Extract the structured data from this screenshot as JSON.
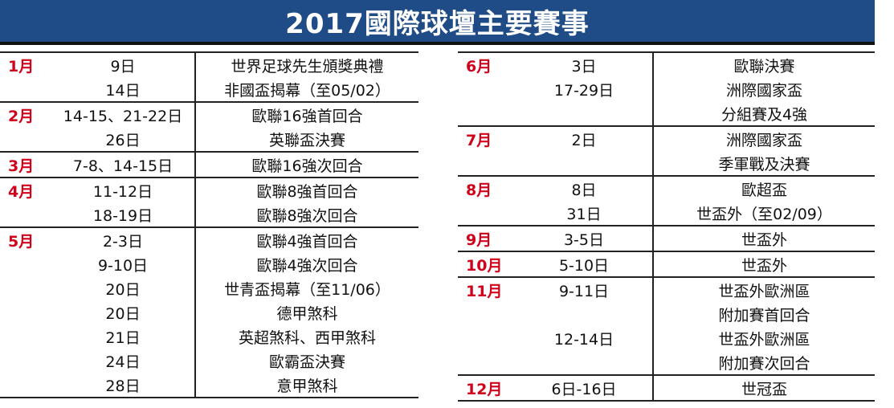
{
  "title": "2017國際球壇主要賽事",
  "colors": {
    "title_bg": "#1f4c86",
    "month": "#d0021b"
  },
  "left": [
    {
      "month": "1月",
      "date": "9日",
      "event": "世界足球先生頒獎典禮"
    },
    {
      "month": "",
      "date": "14日",
      "event": "非國盃揭幕（至05/02）"
    },
    {
      "month": "2月",
      "date": "14-15、21-22日",
      "event": "歐聯16強首回合"
    },
    {
      "month": "",
      "date": "26日",
      "event": "英聯盃決賽"
    },
    {
      "month": "3月",
      "date": "7-8、14-15日",
      "event": "歐聯16強次回合"
    },
    {
      "month": "4月",
      "date": "11-12日",
      "event": "歐聯8強首回合"
    },
    {
      "month": "",
      "date": "18-19日",
      "event": "歐聯8強次回合"
    },
    {
      "month": "5月",
      "date": "2-3日",
      "event": "歐聯4強首回合"
    },
    {
      "month": "",
      "date": "9-10日",
      "event": "歐聯4強次回合"
    },
    {
      "month": "",
      "date": "20日",
      "event": "世青盃揭幕（至11/06）"
    },
    {
      "month": "",
      "date": "20日",
      "event": "德甲煞科"
    },
    {
      "month": "",
      "date": "21日",
      "event": "英超煞科、西甲煞科"
    },
    {
      "month": "",
      "date": "24日",
      "event": "歐霸盃決賽"
    },
    {
      "month": "",
      "date": "28日",
      "event": "意甲煞科"
    }
  ],
  "right": [
    {
      "month": "6月",
      "date": "3日",
      "event": "歐聯決賽"
    },
    {
      "month": "",
      "date": "17-29日",
      "event": "洲際國家盃"
    },
    {
      "month": "",
      "date": "",
      "event": "分組賽及4強"
    },
    {
      "month": "7月",
      "date": "2日",
      "event": "洲際國家盃"
    },
    {
      "month": "",
      "date": "",
      "event": "季軍戰及決賽"
    },
    {
      "month": "8月",
      "date": "8日",
      "event": "歐超盃"
    },
    {
      "month": "",
      "date": "31日",
      "event": "世盃外（至02/09）"
    },
    {
      "month": "9月",
      "date": "3-5日",
      "event": "世盃外"
    },
    {
      "month": "10月",
      "date": "5-10日",
      "event": "世盃外"
    },
    {
      "month": "11月",
      "date": "9-11日",
      "event": "世盃外歐洲區"
    },
    {
      "month": "",
      "date": "",
      "event": "附加賽首回合"
    },
    {
      "month": "",
      "date": "12-14日",
      "event": "世盃外歐洲區"
    },
    {
      "month": "",
      "date": "",
      "event": "附加賽次回合"
    },
    {
      "month": "12月",
      "date": "6日-16日",
      "event": "世冠盃"
    }
  ]
}
